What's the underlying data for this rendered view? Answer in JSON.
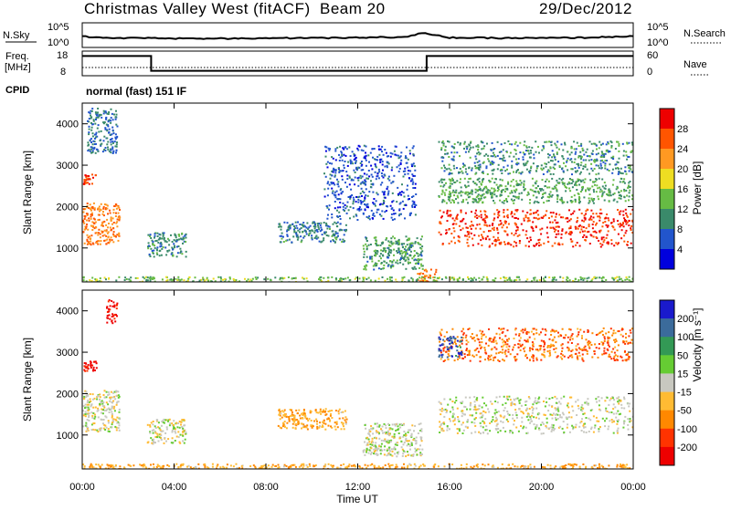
{
  "header": {
    "station": "Christmas Valley West (fitACF)",
    "beam": "Beam 20",
    "date": "29/Dec/2012"
  },
  "params": {
    "nsky_label": "N.Sky",
    "nsky_ticks": [
      "10^5",
      "10^0"
    ],
    "nsearch_label": "N.Search",
    "nsearch_ticks": [
      "10^5",
      "10^0"
    ],
    "freq_label_1": "Freq.",
    "freq_label_2": "[MHz]",
    "freq_ticks": [
      "18",
      "8"
    ],
    "nave_label": "Nave",
    "nave_ticks": [
      "60",
      "0"
    ],
    "cpid_label": "CPID",
    "cpid_value": "normal (fast) 151 IF"
  },
  "axes": {
    "x_label": "Time UT",
    "x_ticks": [
      "00:00",
      "04:00",
      "08:00",
      "12:00",
      "16:00",
      "20:00",
      "00:00"
    ],
    "y_label": "Slant Range [km]",
    "y_ticks": [
      "1000",
      "2000",
      "3000",
      "4000"
    ]
  },
  "colorbars": {
    "power": {
      "label": "Power [dB]",
      "ticks": [
        "4",
        "8",
        "12",
        "16",
        "20",
        "24",
        "28"
      ],
      "colors": [
        "#0000dd",
        "#2255cc",
        "#3a8a6a",
        "#66bb44",
        "#eedd22",
        "#ff9922",
        "#ff5500",
        "#ee0000"
      ]
    },
    "velocity": {
      "label": "Velocity [m s⁻¹]",
      "ticks": [
        "200",
        "100",
        "50",
        "15",
        "-15",
        "-50",
        "-100",
        "-200"
      ],
      "colors": [
        "#1a1acc",
        "#3b6b9b",
        "#339955",
        "#66cc33",
        "#c8c8c0",
        "#ffbb33",
        "#ff8800",
        "#ff3300",
        "#ee0000"
      ]
    }
  },
  "chart_data": [
    {
      "type": "line",
      "title": "N.Sky / N.Search",
      "x_range_hours": [
        0,
        24
      ],
      "series": [
        {
          "name": "N.Sky",
          "x": [
            0,
            1,
            2,
            4,
            6,
            8,
            10,
            12,
            14,
            14.8,
            16,
            18,
            20,
            22,
            24
          ],
          "y": [
            2.2,
            2.0,
            1.9,
            1.8,
            1.8,
            1.9,
            1.9,
            2.0,
            2.1,
            2.9,
            2.0,
            1.9,
            1.9,
            2.0,
            2.3
          ]
        }
      ]
    },
    {
      "type": "line",
      "title": "Freq. / Nave",
      "x_range_hours": [
        0,
        24
      ],
      "series": [
        {
          "name": "Freq.",
          "x": [
            0,
            3,
            3,
            15,
            15,
            24
          ],
          "y": [
            16,
            16,
            10,
            10,
            16,
            16
          ]
        },
        {
          "name": "Nave",
          "x": [
            0,
            24
          ],
          "y": [
            20,
            20
          ]
        }
      ]
    },
    {
      "type": "heatmap",
      "title": "Power [dB]",
      "x_label": "Time UT",
      "y_label": "Slant Range [km]",
      "x_range_hours": [
        0,
        24
      ],
      "ylim": [
        180,
        4500
      ],
      "zlim": [
        0,
        32
      ],
      "regions": [
        {
          "t": [
            0,
            1.6
          ],
          "r": [
            1100,
            2100
          ],
          "z": 24
        },
        {
          "t": [
            0,
            0.6
          ],
          "r": [
            2550,
            2800
          ],
          "z": 28
        },
        {
          "t": [
            0.2,
            1.5
          ],
          "r": [
            3300,
            4400
          ],
          "z": 8
        },
        {
          "t": [
            2.8,
            4.5
          ],
          "r": [
            800,
            1400
          ],
          "z": 10
        },
        {
          "t": [
            8.5,
            11.5
          ],
          "r": [
            1150,
            1650
          ],
          "z": 9
        },
        {
          "t": [
            12.2,
            14.8
          ],
          "r": [
            500,
            1300
          ],
          "z": 11
        },
        {
          "t": [
            14.5,
            15.4
          ],
          "r": [
            200,
            500
          ],
          "z": 24
        },
        {
          "t": [
            0,
            24
          ],
          "r": [
            180,
            320
          ],
          "z": 14
        },
        {
          "t": [
            15.5,
            24
          ],
          "r": [
            1050,
            1950
          ],
          "z": 28
        },
        {
          "t": [
            15.5,
            24
          ],
          "r": [
            2100,
            2700
          ],
          "z": 12
        },
        {
          "t": [
            15.5,
            24
          ],
          "r": [
            2800,
            3600
          ],
          "z": 10
        },
        {
          "t": [
            10.5,
            14.5
          ],
          "r": [
            1700,
            3500
          ],
          "z": 6
        }
      ]
    },
    {
      "type": "heatmap",
      "title": "Velocity [m s⁻¹]",
      "x_label": "Time UT",
      "y_label": "Slant Range [km]",
      "x_range_hours": [
        0,
        24
      ],
      "ylim": [
        180,
        4500
      ],
      "zlim": [
        -200,
        200
      ],
      "regions": [
        {
          "t": [
            0,
            1.6
          ],
          "r": [
            1100,
            2100
          ],
          "z": 0
        },
        {
          "t": [
            0,
            0.6
          ],
          "r": [
            2550,
            2800
          ],
          "z": -180
        },
        {
          "t": [
            1.0,
            1.5
          ],
          "r": [
            3700,
            4300
          ],
          "z": -180
        },
        {
          "t": [
            2.8,
            4.5
          ],
          "r": [
            800,
            1400
          ],
          "z": 0
        },
        {
          "t": [
            8.5,
            11.5
          ],
          "r": [
            1150,
            1650
          ],
          "z": -60
        },
        {
          "t": [
            12.2,
            14.8
          ],
          "r": [
            500,
            1300
          ],
          "z": 0
        },
        {
          "t": [
            0,
            24
          ],
          "r": [
            180,
            320
          ],
          "z": -60
        },
        {
          "t": [
            15.5,
            24
          ],
          "r": [
            1050,
            1950
          ],
          "z": 0
        },
        {
          "t": [
            15.5,
            24
          ],
          "r": [
            2800,
            3600
          ],
          "z": -100
        },
        {
          "t": [
            15.5,
            16.5
          ],
          "r": [
            2900,
            3400
          ],
          "z": 150
        }
      ]
    }
  ]
}
